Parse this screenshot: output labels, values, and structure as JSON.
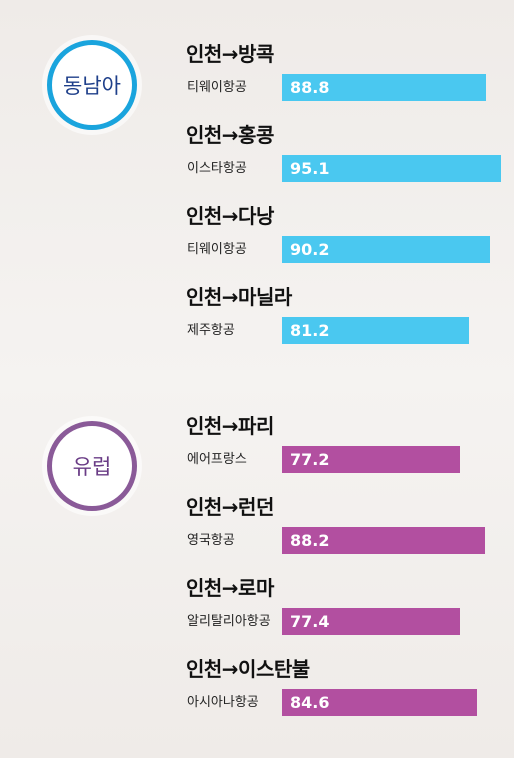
{
  "colors": {
    "southeast_asia": "#4ac8f0",
    "europe": "#b24fa0",
    "southeast_asia_ring": "#1aa4dd",
    "southeast_asia_text": "#1e3f8a",
    "europe_ring": "#8a5a98",
    "europe_text": "#6a3c86"
  },
  "chart_data": {
    "type": "bar",
    "orientation": "horizontal",
    "xlim": [
      0,
      100
    ],
    "groups": [
      {
        "name": "동남아",
        "color": "#4ac8f0",
        "items": [
          {
            "route": "인천→방콕",
            "airline": "티웨이항공",
            "value": 88.8
          },
          {
            "route": "인천→홍콩",
            "airline": "이스타항공",
            "value": 95.1
          },
          {
            "route": "인천→다낭",
            "airline": "티웨이항공",
            "value": 90.2
          },
          {
            "route": "인천→마닐라",
            "airline": "제주항공",
            "value": 81.2
          }
        ]
      },
      {
        "name": "유럽",
        "color": "#b24fa0",
        "items": [
          {
            "route": "인천→파리",
            "airline": "에어프랑스",
            "value": 77.2
          },
          {
            "route": "인천→런던",
            "airline": "영국항공",
            "value": 88.2
          },
          {
            "route": "인천→로마",
            "airline": "알리탈리아항공",
            "value": 77.4
          },
          {
            "route": "인천→이스탄불",
            "airline": "아시아나항공",
            "value": 84.6
          }
        ]
      }
    ]
  }
}
